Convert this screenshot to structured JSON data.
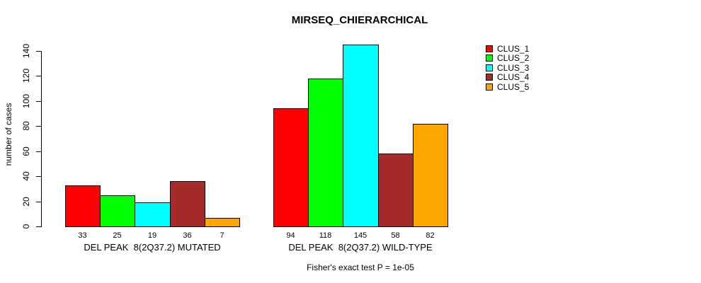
{
  "chart_data": {
    "type": "bar",
    "title": "MIRSEQ_CHIERARCHICAL",
    "ylabel": "number of cases",
    "xlabel": "",
    "ylim": [
      0,
      140
    ],
    "yticks": [
      0,
      20,
      40,
      60,
      80,
      100,
      120,
      140
    ],
    "grid": false,
    "legend_position": "top-right",
    "bar_border_color": "#000000",
    "background_color": "#ffffff",
    "categories": [
      "DEL PEAK  8(2Q37.2) MUTATED",
      "DEL PEAK  8(2Q37.2) WILD-TYPE"
    ],
    "series": [
      {
        "name": "CLUS_1",
        "color": "#ff0000",
        "values": [
          33,
          94
        ]
      },
      {
        "name": "CLUS_2",
        "color": "#00ff00",
        "values": [
          25,
          118
        ]
      },
      {
        "name": "CLUS_3",
        "color": "#00ffff",
        "values": [
          19,
          145
        ]
      },
      {
        "name": "CLUS_4",
        "color": "#a52a2a",
        "values": [
          36,
          58
        ]
      },
      {
        "name": "CLUS_5",
        "color": "#ffa500",
        "values": [
          7,
          82
        ]
      }
    ],
    "value_labels": [
      [
        33,
        25,
        19,
        36,
        7
      ],
      [
        94,
        118,
        145,
        58,
        82
      ]
    ],
    "footnote": "Fisher's exact test P = 1e-05"
  }
}
